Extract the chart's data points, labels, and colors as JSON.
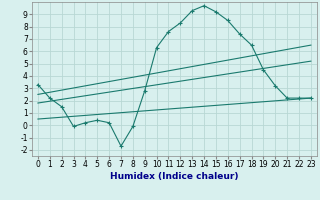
{
  "xlabel": "Humidex (Indice chaleur)",
  "bg_color": "#d8f0ee",
  "grid_color": "#b8d8d4",
  "line_color": "#1a7a6e",
  "xlim": [
    -0.5,
    23.5
  ],
  "ylim": [
    -2.5,
    10.0
  ],
  "xticks": [
    0,
    1,
    2,
    3,
    4,
    5,
    6,
    7,
    8,
    9,
    10,
    11,
    12,
    13,
    14,
    15,
    16,
    17,
    18,
    19,
    20,
    21,
    22,
    23
  ],
  "yticks": [
    -2,
    -1,
    0,
    1,
    2,
    3,
    4,
    5,
    6,
    7,
    8,
    9
  ],
  "curve1_x": [
    0,
    1,
    2,
    3,
    4,
    5,
    6,
    7,
    8,
    9,
    10,
    11,
    12,
    13,
    14,
    15,
    16,
    17,
    18,
    19,
    20,
    21,
    22,
    23
  ],
  "curve1_y": [
    3.3,
    2.2,
    1.5,
    -0.1,
    0.2,
    0.4,
    0.2,
    -1.7,
    -0.1,
    2.8,
    6.3,
    7.6,
    8.3,
    9.3,
    9.7,
    9.2,
    8.5,
    7.4,
    6.5,
    4.5,
    3.2,
    2.2,
    2.2,
    2.2
  ],
  "curve2_x": [
    0,
    23
  ],
  "curve2_y": [
    2.5,
    6.5
  ],
  "curve3_x": [
    0,
    23
  ],
  "curve3_y": [
    1.8,
    5.2
  ],
  "curve4_x": [
    0,
    23
  ],
  "curve4_y": [
    0.5,
    2.2
  ],
  "xlabel_color": "#00008b",
  "xlabel_fontsize": 6.5,
  "tick_fontsize": 5.5
}
